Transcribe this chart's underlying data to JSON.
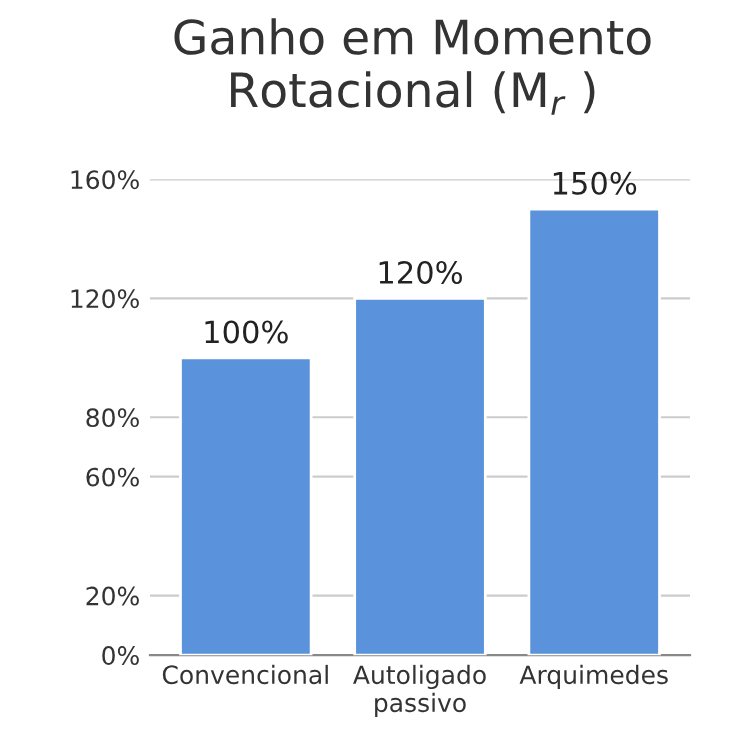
{
  "chart_data": {
    "type": "bar",
    "title": "Ganho em Momento\nRotacional (M$_{r}$ )",
    "categories": [
      "Convencional",
      "Autoligado\npassivo",
      "Arquimedes"
    ],
    "values": [
      100,
      120,
      150
    ],
    "color": "#5a93db",
    "value_labels": [
      "100%",
      "120%",
      "150%"
    ],
    "ylim": [
      0,
      160
    ],
    "yticks": [
      {
        "value": 0,
        "label": "0%"
      },
      {
        "value": 20,
        "label": "20%"
      },
      {
        "value": 60,
        "label": "60%"
      },
      {
        "value": 80,
        "label": "80%"
      },
      {
        "value": 120,
        "label": "120%"
      },
      {
        "value": 160,
        "label": "160%"
      }
    ],
    "grid": "y"
  }
}
